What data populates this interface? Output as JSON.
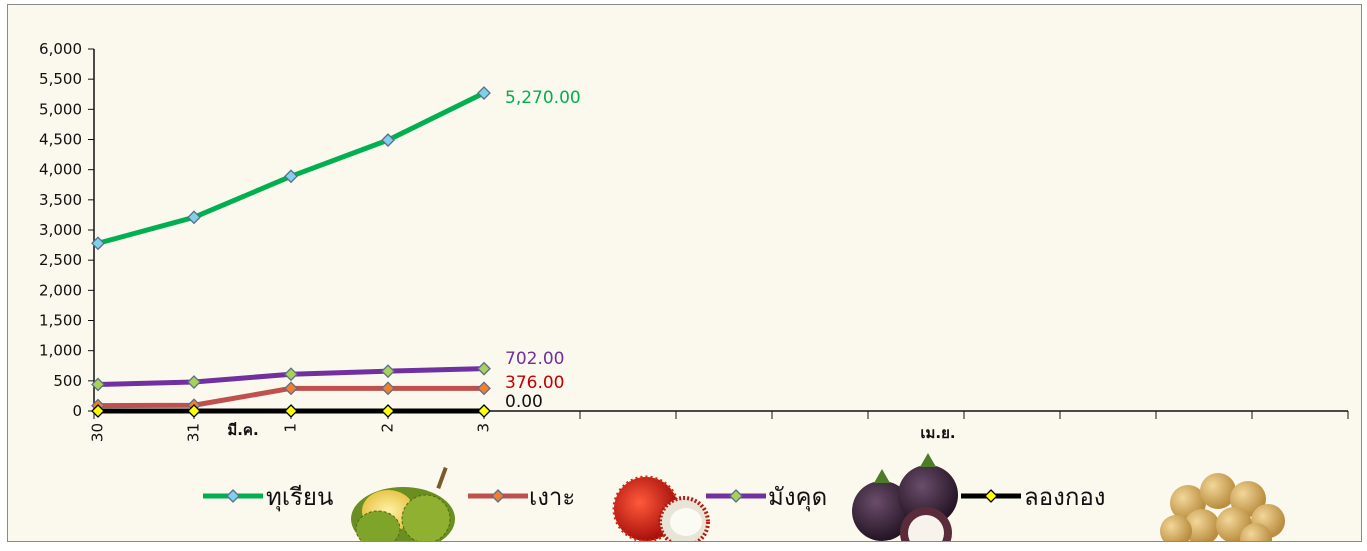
{
  "chart_data": {
    "type": "line",
    "title": "",
    "xlabel": "",
    "ylabel": "",
    "ylim": [
      0,
      6000
    ],
    "yticks": [
      "0",
      "500",
      "1,000",
      "1,500",
      "2,000",
      "2,500",
      "3,000",
      "3,500",
      "4,000",
      "4,500",
      "5,000",
      "5,500",
      "6,000"
    ],
    "categories": [
      "30",
      "31",
      "1",
      "2",
      "3"
    ],
    "month_labels": [
      "มี.ค.",
      "เม.ย."
    ],
    "grid": false,
    "legend_position": "bottom",
    "series": [
      {
        "name": "ทุเรียน",
        "color": "#00b050",
        "marker_color": "#7fd0ea",
        "values": [
          2780,
          3210,
          3890,
          4490,
          5270
        ],
        "end_label": "5,270.00"
      },
      {
        "name": "เงาะ",
        "color": "#c0504d",
        "marker_color": "#f07f30",
        "values": [
          90,
          95,
          376,
          376,
          376
        ],
        "end_label": "376.00"
      },
      {
        "name": "มังคุด",
        "color": "#7030a0",
        "marker_color": "#a9d05a",
        "values": [
          440,
          480,
          610,
          660,
          702
        ],
        "end_label": "702.00"
      },
      {
        "name": "ลองกอง",
        "color": "#000000",
        "marker_color": "#ffff00",
        "values": [
          0,
          0,
          0,
          0,
          0
        ],
        "end_label": "0.00"
      }
    ]
  },
  "legend_images": [
    "durian-image",
    "rambutan-image",
    "mangosteen-image",
    "longkong-image"
  ]
}
